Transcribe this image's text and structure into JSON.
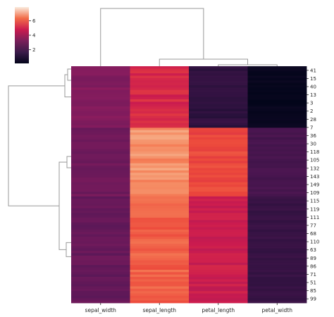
{
  "chart_data": {
    "type": "heatmap",
    "title": "",
    "xlabel": "",
    "ylabel": "",
    "columns": [
      "sepal_width",
      "sepal_length",
      "petal_length",
      "petal_width"
    ],
    "row_tick_labels": [
      "41",
      "15",
      "40",
      "13",
      "3",
      "2",
      "28",
      "7",
      "36",
      "30",
      "118",
      "105",
      "132",
      "143",
      "149",
      "109",
      "115",
      "119",
      "111",
      "77",
      "68",
      "110",
      "63",
      "89",
      "86",
      "71",
      "51",
      "85",
      "99"
    ],
    "colorbar": {
      "min": 0.1,
      "max": 7.9,
      "ticks": [
        2,
        4,
        6
      ]
    },
    "colormap": "rocket",
    "cluster_groups": [
      {
        "rows": 26,
        "values": [
          3.45,
          5.05,
          1.45,
          0.25
        ]
      },
      {
        "rows": 29,
        "values": [
          3.05,
          6.9,
          5.7,
          2.05
        ]
      },
      {
        "rows": 45,
        "values": [
          2.8,
          6.1,
          4.8,
          1.65
        ]
      }
    ],
    "row_dendrogram": true,
    "col_dendrogram": true
  }
}
